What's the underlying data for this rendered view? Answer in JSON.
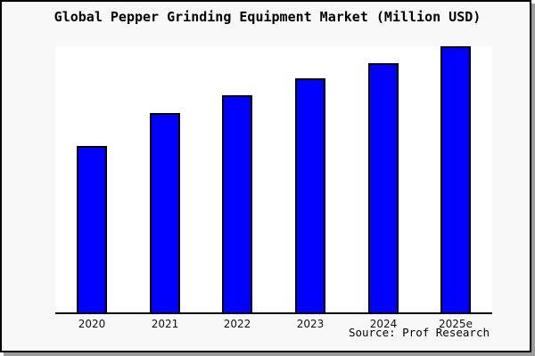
{
  "chart_data": {
    "type": "bar",
    "title": "Global Pepper Grinding Equipment Market (Million USD)",
    "categories": [
      "2020",
      "2021",
      "2022",
      "2023",
      "2024",
      "2025e"
    ],
    "values": [
      62.6,
      75.0,
      81.5,
      87.8,
      93.5,
      100
    ],
    "value_note": "no y-axis labels shown; bar heights estimated from pixels, normalized to tallest bar = 100",
    "xlabel": "",
    "ylabel": "",
    "ylim": [
      0,
      100
    ],
    "grid": "off",
    "legend": "none",
    "bar_fill_color": "#0000ff",
    "bar_border_color": "#000000",
    "plot_background": "#ffffff",
    "axis_color": "#000000"
  },
  "source": {
    "label": "Source: Prof Research"
  },
  "frame": {
    "background": "#f8f8f8",
    "border_color": "#000000",
    "shadow_color": "#9c9c9c"
  }
}
